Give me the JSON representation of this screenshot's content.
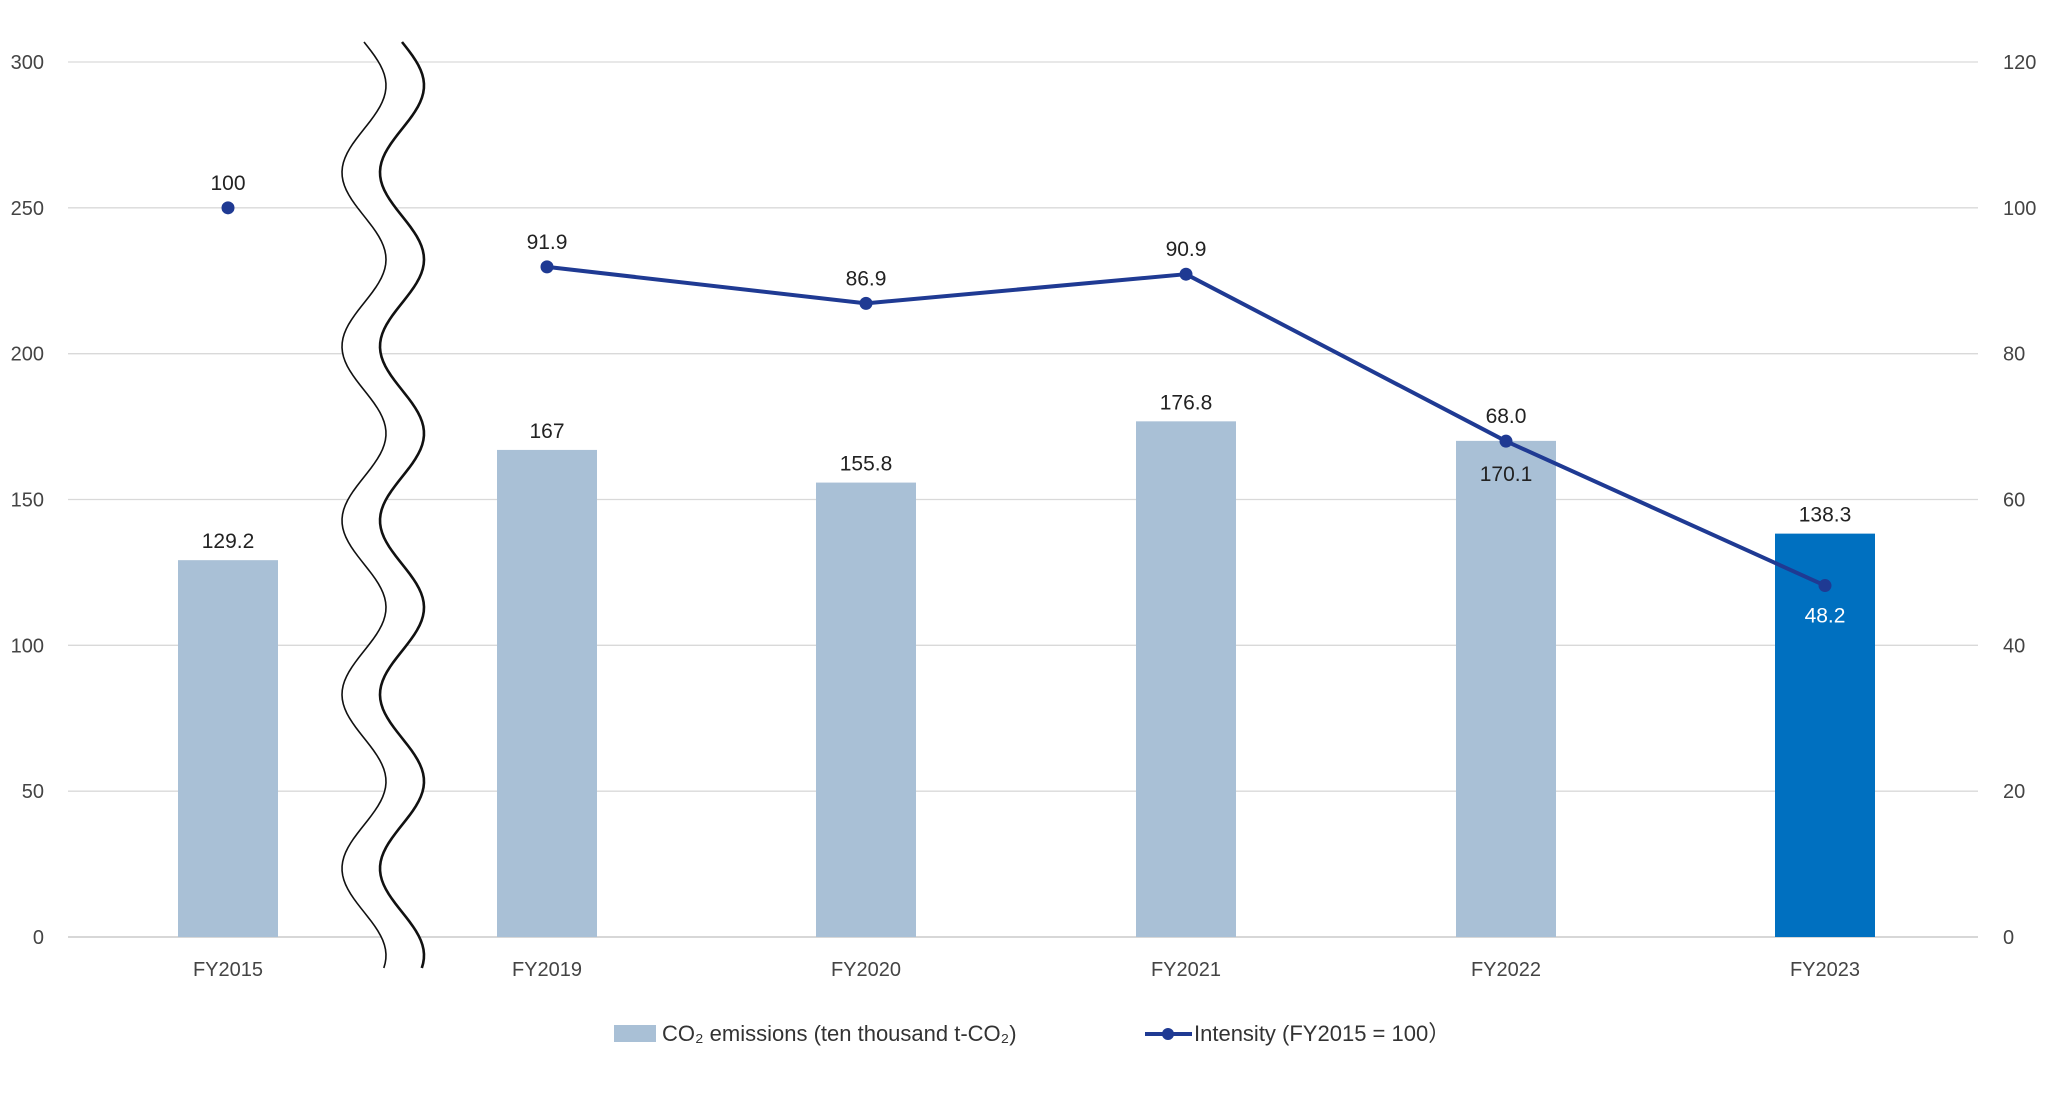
{
  "chart_data": {
    "type": "bar",
    "categories": [
      "FY2015",
      "FY2019",
      "FY2020",
      "FY2021",
      "FY2022",
      "FY2023"
    ],
    "series": [
      {
        "name": "CO₂ emissions (ten thousand t-CO₂)",
        "type": "bar",
        "axis": "left",
        "values": [
          129.2,
          167,
          155.8,
          176.8,
          170.1,
          138.3
        ],
        "labels": [
          "129.2",
          "167",
          "155.8",
          "176.8",
          "170.1",
          "138.3"
        ],
        "color": "#a9c0d6",
        "highlight_color": "#0070c0",
        "highlight_index": 5
      },
      {
        "name": "Intensity (FY2015 = 100）",
        "type": "line",
        "axis": "right",
        "values": [
          100,
          91.9,
          86.9,
          90.9,
          68.0,
          48.2
        ],
        "labels": [
          "100",
          "91.9",
          "86.9",
          "90.9",
          "68.0",
          "48.2"
        ],
        "color": "#1f3a93"
      }
    ],
    "y_left": {
      "min": 0,
      "max": 300,
      "ticks": [
        "0",
        "50",
        "100",
        "150",
        "200",
        "250",
        "300"
      ]
    },
    "y_right": {
      "min": 0,
      "max": 120,
      "ticks": [
        "0",
        "20",
        "40",
        "60",
        "80",
        "100",
        "120"
      ]
    },
    "axis_break": "between FY2015 and FY2019",
    "line_connects_from_index": 1,
    "grid": true,
    "legend": "bottom",
    "title": "",
    "xlabel": "",
    "ylabel": ""
  }
}
